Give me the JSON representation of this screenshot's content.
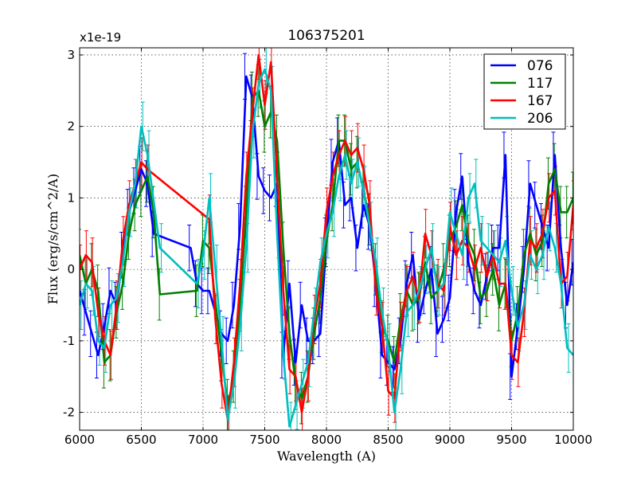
{
  "chart_data": {
    "type": "line",
    "title": "106375201",
    "xlabel": "Wavelength (A)",
    "ylabel": "Flux (erg/s/cm^2/A)",
    "offset_text": "x1e-19",
    "xlim": [
      6000,
      10000
    ],
    "ylim": [
      -2.25,
      3.1
    ],
    "xticks": [
      6000,
      6500,
      7000,
      7500,
      8000,
      8500,
      9000,
      9500,
      10000
    ],
    "xtick_labels": [
      "6000",
      "6500",
      "7000",
      "7500",
      "8000",
      "8500",
      "9000",
      "9500",
      "10000"
    ],
    "yticks": [
      -2,
      -1,
      0,
      1,
      2,
      3
    ],
    "ytick_labels": [
      "-2",
      "-1",
      "0",
      "1",
      "2",
      "3"
    ],
    "grid": true,
    "legend_position": "top-right",
    "series": [
      {
        "name": "076",
        "color": "#0000ff",
        "x": [
          6000,
          6050,
          6100,
          6150,
          6200,
          6250,
          6300,
          6350,
          6400,
          6450,
          6500,
          6550,
          6600,
          6900,
          6950,
          7000,
          7050,
          7150,
          7200,
          7250,
          7300,
          7350,
          7400,
          7450,
          7500,
          7550,
          7600,
          7650,
          7700,
          7750,
          7800,
          7850,
          7900,
          7950,
          8000,
          8050,
          8100,
          8150,
          8200,
          8250,
          8300,
          8350,
          8400,
          8450,
          8500,
          8550,
          8600,
          8650,
          8700,
          8750,
          8800,
          8850,
          8900,
          8950,
          9000,
          9050,
          9100,
          9150,
          9200,
          9250,
          9300,
          9350,
          9400,
          9450,
          9500,
          9550,
          9600,
          9650,
          9700,
          9750,
          9800,
          9850,
          9900,
          9950,
          10000
        ],
        "y": [
          -0.3,
          -0.6,
          -0.9,
          -1.2,
          -0.8,
          -0.3,
          -0.5,
          0.2,
          0.8,
          1.1,
          1.4,
          1.2,
          0.5,
          0.3,
          -0.2,
          -0.3,
          -0.3,
          -0.9,
          -1.0,
          -0.5,
          0.6,
          2.7,
          2.4,
          1.3,
          1.1,
          1.0,
          1.2,
          -1.2,
          -0.2,
          -1.3,
          -0.5,
          -1.0,
          -1.0,
          -0.9,
          0.4,
          1.5,
          1.8,
          0.9,
          1.0,
          0.3,
          0.9,
          0.6,
          -0.2,
          -1.2,
          -1.3,
          -1.4,
          -1.0,
          -0.2,
          0.2,
          -0.7,
          -0.3,
          0.0,
          -0.9,
          -0.7,
          -0.4,
          0.8,
          1.3,
          0.1,
          -0.3,
          -0.5,
          -0.1,
          0.3,
          0.3,
          1.6,
          -1.5,
          -0.8,
          0.0,
          1.2,
          0.9,
          0.6,
          0.3,
          1.6,
          0.3,
          -0.5,
          0.1
        ]
      },
      {
        "name": "117",
        "color": "#008000",
        "x": [
          6000,
          6050,
          6100,
          6150,
          6200,
          6250,
          6300,
          6350,
          6400,
          6450,
          6500,
          6550,
          6600,
          6650,
          6950,
          7000,
          7050,
          7150,
          7200,
          7250,
          7300,
          7350,
          7400,
          7450,
          7500,
          7550,
          7600,
          7650,
          7700,
          7750,
          7800,
          7850,
          7900,
          7950,
          8000,
          8050,
          8100,
          8150,
          8200,
          8250,
          8300,
          8350,
          8400,
          8450,
          8500,
          8550,
          8600,
          8650,
          8700,
          8750,
          8800,
          8850,
          8900,
          8950,
          9000,
          9050,
          9100,
          9150,
          9200,
          9250,
          9300,
          9350,
          9400,
          9450,
          9500,
          9550,
          9600,
          9650,
          9700,
          9750,
          9800,
          9850,
          9900,
          9950,
          10000
        ],
        "y": [
          0.2,
          -0.2,
          0.0,
          -0.3,
          -1.3,
          -1.2,
          -0.6,
          -0.2,
          0.5,
          0.9,
          1.1,
          1.3,
          0.8,
          -0.35,
          -0.3,
          0.4,
          0.3,
          -1.2,
          -1.9,
          -1.5,
          -0.5,
          0.8,
          2.4,
          2.5,
          2.0,
          2.2,
          1.8,
          0.3,
          -0.9,
          -1.6,
          -1.8,
          -1.5,
          -0.9,
          -0.4,
          0.4,
          0.9,
          1.8,
          1.8,
          1.4,
          1.5,
          1.1,
          0.7,
          0.0,
          -0.8,
          -1.0,
          -1.3,
          -0.7,
          -0.3,
          -0.5,
          -0.4,
          0.1,
          -0.4,
          -0.3,
          0.0,
          0.4,
          0.6,
          0.9,
          0.4,
          0.2,
          -0.4,
          -0.3,
          0.0,
          -0.5,
          -0.2,
          -1.0,
          -0.6,
          0.2,
          0.5,
          0.2,
          0.4,
          1.2,
          1.4,
          0.8,
          0.8,
          1.0
        ]
      },
      {
        "name": "167",
        "color": "#ff0000",
        "x": [
          6000,
          6050,
          6100,
          6150,
          6200,
          6250,
          6300,
          6350,
          6400,
          6450,
          6500,
          6550,
          7050,
          7100,
          7150,
          7200,
          7250,
          7300,
          7350,
          7400,
          7450,
          7500,
          7550,
          7600,
          7650,
          7700,
          7750,
          7800,
          7850,
          7900,
          7950,
          8000,
          8050,
          8100,
          8150,
          8200,
          8250,
          8300,
          8350,
          8400,
          8450,
          8500,
          8550,
          8600,
          8650,
          8700,
          8750,
          8800,
          8850,
          8900,
          8950,
          9000,
          9050,
          9100,
          9150,
          9200,
          9250,
          9300,
          9350,
          9400,
          9450,
          9500,
          9550,
          9600,
          9650,
          9700,
          9750,
          9800,
          9850,
          9900,
          9950,
          10000
        ],
        "y": [
          0.0,
          0.2,
          0.1,
          -0.6,
          -1.0,
          -1.2,
          -0.5,
          0.4,
          0.9,
          1.2,
          1.5,
          1.4,
          0.7,
          -0.7,
          -1.6,
          -2.1,
          -1.3,
          -0.2,
          1.3,
          2.2,
          3.0,
          2.3,
          2.9,
          1.3,
          -0.3,
          -1.4,
          -1.5,
          -2.0,
          -1.5,
          -0.7,
          -0.2,
          0.8,
          1.3,
          1.6,
          1.8,
          1.6,
          1.7,
          1.4,
          0.9,
          -0.3,
          -0.8,
          -1.7,
          -1.8,
          -0.8,
          -0.3,
          -0.1,
          -0.4,
          0.5,
          0.2,
          -0.2,
          -0.3,
          0.6,
          0.2,
          0.4,
          0.3,
          0.0,
          0.3,
          -0.1,
          0.2,
          -0.2,
          -0.2,
          -1.2,
          -1.3,
          -0.6,
          0.4,
          0.3,
          0.5,
          1.0,
          1.1,
          -0.2,
          -0.1,
          0.9
        ]
      },
      {
        "name": "206",
        "color": "#00bfbf",
        "x": [
          6000,
          6050,
          6100,
          6150,
          6200,
          6250,
          6300,
          6350,
          6400,
          6450,
          6500,
          6550,
          6650,
          6950,
          7000,
          7050,
          7100,
          7150,
          7200,
          7250,
          7300,
          7350,
          7400,
          7450,
          7500,
          7550,
          7600,
          7650,
          7700,
          7750,
          7800,
          7850,
          7900,
          7950,
          8000,
          8050,
          8100,
          8150,
          8200,
          8250,
          8300,
          8350,
          8400,
          8450,
          8500,
          8550,
          8600,
          8650,
          8700,
          8750,
          8800,
          8850,
          8900,
          8950,
          9000,
          9050,
          9100,
          9150,
          9200,
          9250,
          9300,
          9350,
          9400,
          9450,
          9500,
          9550,
          9600,
          9650,
          9700,
          9750,
          9800,
          9850,
          9900,
          9950,
          10000
        ],
        "y": [
          -0.5,
          -0.2,
          -0.3,
          -1.0,
          -1.1,
          -0.5,
          -0.4,
          0.1,
          0.8,
          1.2,
          2.0,
          1.6,
          0.3,
          -0.2,
          0.2,
          1.0,
          0.0,
          -1.0,
          -2.1,
          -1.6,
          -0.8,
          0.3,
          1.9,
          2.6,
          2.8,
          2.5,
          0.5,
          -1.2,
          -2.2,
          -1.9,
          -1.6,
          -1.3,
          -0.6,
          0.1,
          0.5,
          0.8,
          1.3,
          1.6,
          1.2,
          1.5,
          1.1,
          0.6,
          0.1,
          -0.6,
          -1.1,
          -2.0,
          -1.4,
          -0.6,
          -0.5,
          -0.3,
          0.0,
          0.3,
          -0.3,
          -0.2,
          0.8,
          0.5,
          0.2,
          1.0,
          1.2,
          0.4,
          0.3,
          0.2,
          0.1,
          0.4,
          -0.3,
          -0.8,
          -0.5,
          0.2,
          0.0,
          0.2,
          0.6,
          0.3,
          -0.2,
          -1.1,
          -1.2
        ]
      }
    ]
  }
}
